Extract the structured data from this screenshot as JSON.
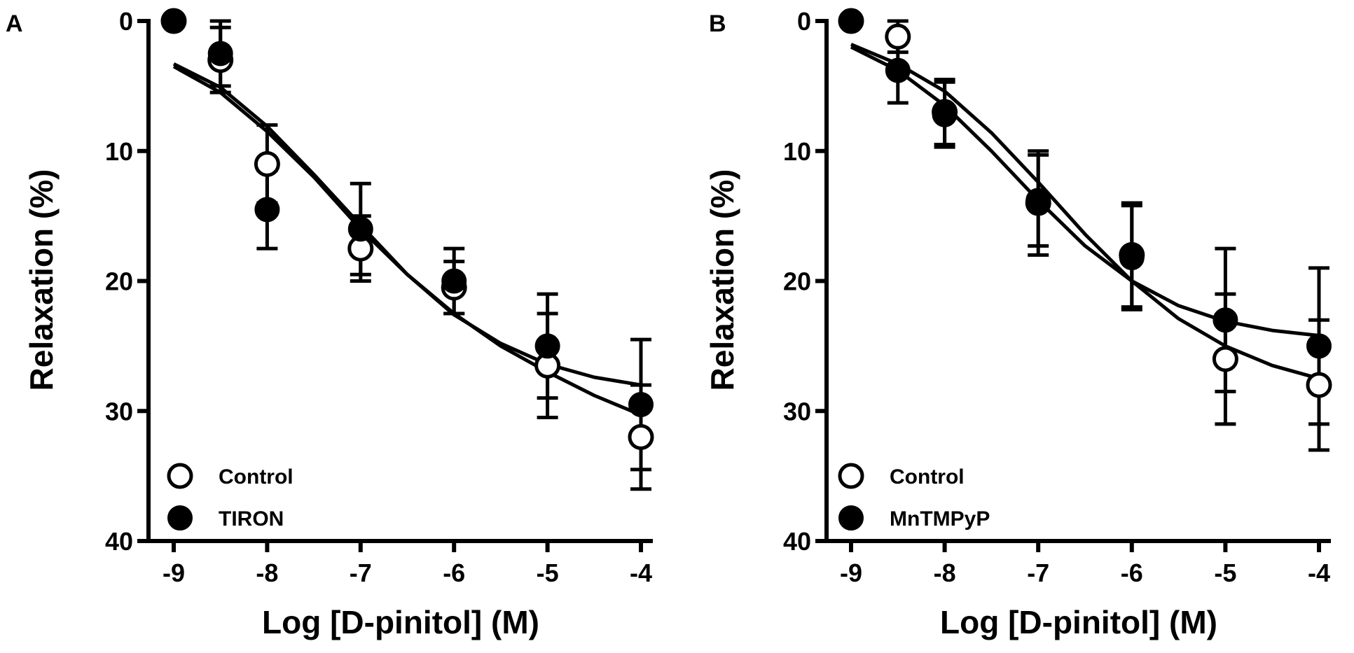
{
  "chart_data": [
    {
      "panel_label": "A",
      "type": "scatter",
      "xlabel": "Log [D-pinitol] (M)",
      "ylabel_main": "Relaxation",
      "ylabel_unit": "(%)",
      "xlim": [
        -9,
        -4
      ],
      "ylim": [
        0,
        40
      ],
      "y_inverted": true,
      "x_ticks": [
        -9,
        -8,
        -7,
        -6,
        -5,
        -4
      ],
      "x_tick_labels": [
        "-9",
        "-8",
        "-7",
        "-6",
        "-5",
        "-4"
      ],
      "y_ticks": [
        0,
        10,
        20,
        30,
        40
      ],
      "y_tick_labels": [
        "0",
        "10",
        "20",
        "30",
        "40"
      ],
      "legend_position": "bottom-left",
      "series": [
        {
          "name": "Control",
          "marker": "open-circle",
          "x": [
            -9,
            -8.5,
            -8,
            -7,
            -6,
            -5,
            -4
          ],
          "y": [
            0,
            3,
            11,
            17.5,
            20.5,
            26.5,
            32
          ],
          "error": [
            0,
            2.5,
            3,
            2.5,
            2,
            4,
            4
          ],
          "fit": [
            [
              -9,
              3.5
            ],
            [
              -8.5,
              5.5
            ],
            [
              -8,
              8.5
            ],
            [
              -7.5,
              12
            ],
            [
              -7,
              16
            ],
            [
              -6.5,
              19.5
            ],
            [
              -6,
              22.5
            ],
            [
              -5.5,
              25
            ],
            [
              -5,
              27
            ],
            [
              -4.5,
              28.8
            ],
            [
              -4,
              30.3
            ]
          ]
        },
        {
          "name": "TIRON",
          "marker": "filled-circle",
          "x": [
            -9,
            -8.5,
            -8,
            -7,
            -6,
            -5,
            -4
          ],
          "y": [
            0,
            2.5,
            14.5,
            16,
            20,
            25,
            29.5
          ],
          "error": [
            0,
            2.5,
            3,
            3.5,
            2.5,
            4,
            5
          ],
          "fit": [
            [
              -9,
              3.3
            ],
            [
              -8.5,
              5.1
            ],
            [
              -8,
              8.1
            ],
            [
              -7.5,
              11.8
            ],
            [
              -7,
              15.7
            ],
            [
              -6.5,
              19.5
            ],
            [
              -6,
              22.6
            ],
            [
              -5.5,
              24.8
            ],
            [
              -5,
              26.4
            ],
            [
              -4.5,
              27.4
            ],
            [
              -4,
              28
            ]
          ]
        }
      ]
    },
    {
      "panel_label": "B",
      "type": "scatter",
      "xlabel": "Log [D-pinitol] (M)",
      "ylabel_main": "Relaxation",
      "ylabel_unit": "(%)",
      "xlim": [
        -9,
        -4
      ],
      "ylim": [
        0,
        40
      ],
      "y_inverted": true,
      "x_ticks": [
        -9,
        -8,
        -7,
        -6,
        -5,
        -4
      ],
      "x_tick_labels": [
        "-9",
        "-8",
        "-7",
        "-6",
        "-5",
        "-4"
      ],
      "y_ticks": [
        0,
        10,
        20,
        30,
        40
      ],
      "y_tick_labels": [
        "0",
        "10",
        "20",
        "30",
        "40"
      ],
      "legend_position": "bottom-left",
      "series": [
        {
          "name": "Control",
          "marker": "open-circle",
          "x": [
            -9,
            -8.5,
            -8,
            -7,
            -6,
            -5,
            -4
          ],
          "y": [
            0,
            1.2,
            7,
            14,
            18,
            26,
            28
          ],
          "error": [
            0,
            1.2,
            2.5,
            4,
            4,
            5,
            5
          ],
          "fit": [
            [
              -9,
              1.8
            ],
            [
              -8.5,
              3.3
            ],
            [
              -8,
              5.4
            ],
            [
              -7.5,
              8.6
            ],
            [
              -7,
              12.4
            ],
            [
              -6.5,
              16.4
            ],
            [
              -6,
              20
            ],
            [
              -5.5,
              22.9
            ],
            [
              -5,
              25
            ],
            [
              -4.5,
              26.5
            ],
            [
              -4,
              27.5
            ]
          ]
        },
        {
          "name": "MnTMPyP",
          "marker": "filled-circle",
          "x": [
            -9,
            -8.5,
            -8,
            -7,
            -6,
            -5,
            -4
          ],
          "y": [
            0,
            3.8,
            7.2,
            13.8,
            18.2,
            23,
            25
          ],
          "error": [
            0,
            2.5,
            2.5,
            3.5,
            4,
            5.5,
            6
          ],
          "fit": [
            [
              -9,
              2
            ],
            [
              -8.5,
              3.8
            ],
            [
              -8,
              6.5
            ],
            [
              -7.5,
              10
            ],
            [
              -7,
              13.8
            ],
            [
              -6.5,
              17.3
            ],
            [
              -6,
              20
            ],
            [
              -5.5,
              21.9
            ],
            [
              -5,
              23.1
            ],
            [
              -4.5,
              23.8
            ],
            [
              -4,
              24.2
            ]
          ]
        }
      ]
    }
  ]
}
